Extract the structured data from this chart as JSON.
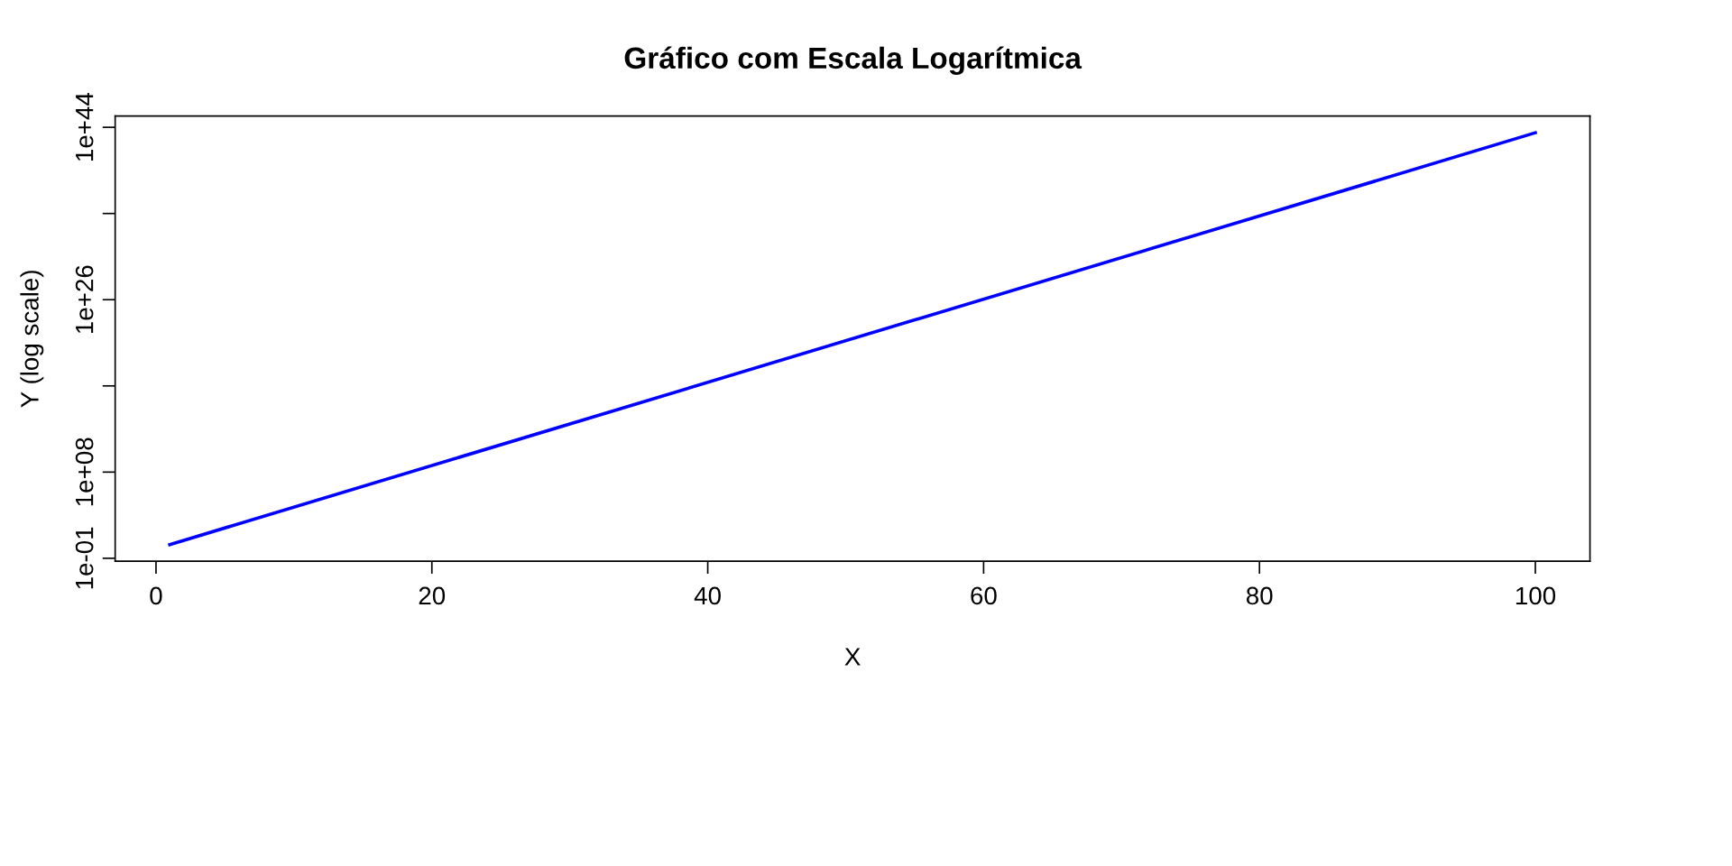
{
  "chart_data": {
    "type": "line",
    "title": "Gráfico com Escala Logarítmica",
    "xlabel": "X",
    "ylabel": "Y (log scale)",
    "x": [
      1,
      100
    ],
    "series": [
      {
        "color": "#0000ff",
        "values": [
          2.7,
          2.7e+43
        ]
      }
    ],
    "log": "y",
    "xlim": [
      -2.96,
      103.96
    ],
    "xticks": [
      0,
      20,
      40,
      60,
      80,
      100
    ],
    "ylim": [
      0.05,
      1.5e+45
    ],
    "yticks": [
      {
        "value": 0.1,
        "label": "1e-01"
      },
      {
        "value": 100000000.0,
        "label": "1e+08"
      },
      {
        "value": 1e+17,
        "label": null
      },
      {
        "value": 1e+26,
        "label": "1e+26"
      },
      {
        "value": 1e+35,
        "label": null
      },
      {
        "value": 1e+44,
        "label": "1e+44"
      }
    ],
    "grid": false,
    "legend": false,
    "marker": "none",
    "line_style": "solid"
  }
}
